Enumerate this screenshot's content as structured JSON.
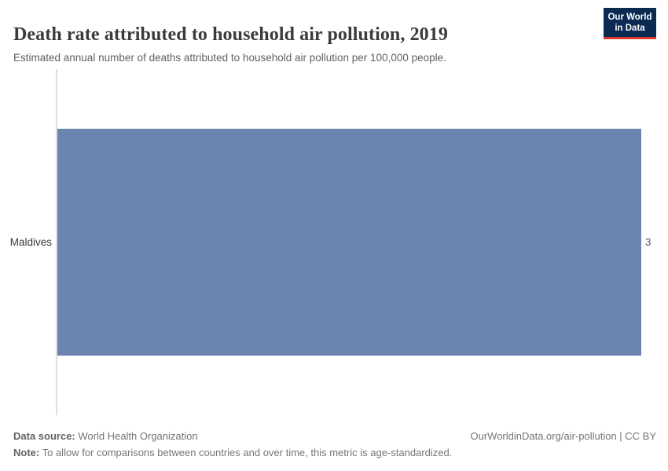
{
  "header": {
    "title": "Death rate attributed to household air pollution, 2019",
    "subtitle": "Estimated annual number of deaths attributed to household air pollution per 100,000 people.",
    "logo": {
      "line1": "Our World",
      "line2": "in Data",
      "bg_color": "#0b2a52",
      "accent_color": "#d93a2b"
    }
  },
  "chart_data": {
    "type": "bar",
    "orientation": "horizontal",
    "title": "Death rate attributed to household air pollution, 2019",
    "categories": [
      "Maldives"
    ],
    "values": [
      3
    ],
    "xlabel": "",
    "ylabel": "",
    "xlim": [
      0,
      3
    ],
    "grid": false,
    "legend": "none",
    "bar_color": "#6c84b0"
  },
  "chart": {
    "entity_label": "Maldives",
    "value_label": "3"
  },
  "footer": {
    "datasource_label": "Data source:",
    "datasource_value": "World Health Organization",
    "note_label": "Note:",
    "note_value": "To allow for comparisons between countries and over time, this metric is age-standardized.",
    "link": "OurWorldinData.org/air-pollution | CC BY"
  }
}
